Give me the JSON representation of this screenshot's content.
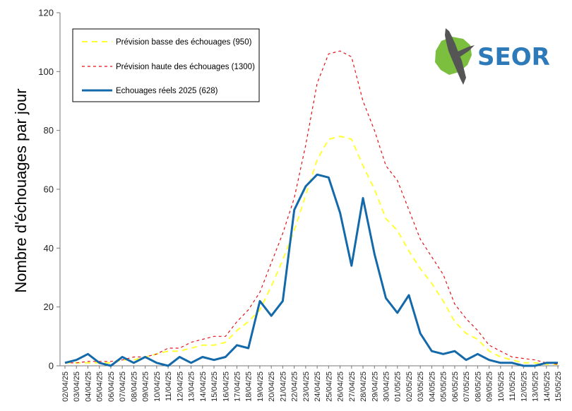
{
  "chart_data": {
    "type": "line",
    "title": "",
    "xlabel": "",
    "ylabel": "Nombre d'échouages par jour",
    "ylim": [
      0,
      120
    ],
    "yticks": [
      0,
      20,
      40,
      60,
      80,
      100,
      120
    ],
    "grid": false,
    "legend_position": "top-left",
    "categories": [
      "02/04/25",
      "03/04/25",
      "04/04/25",
      "05/04/25",
      "06/04/25",
      "07/04/25",
      "08/04/25",
      "09/04/25",
      "10/04/25",
      "11/04/25",
      "12/04/25",
      "13/04/25",
      "14/04/25",
      "15/04/25",
      "16/04/25",
      "17/04/25",
      "18/04/25",
      "19/04/25",
      "20/04/25",
      "21/04/25",
      "22/04/25",
      "23/04/25",
      "24/04/25",
      "25/04/25",
      "26/04/25",
      "27/04/25",
      "28/04/25",
      "29/04/25",
      "30/04/25",
      "01/05/25",
      "02/05/25",
      "03/05/25",
      "04/05/25",
      "05/05/25",
      "06/05/25",
      "07/05/25",
      "08/05/25",
      "09/05/25",
      "10/05/25",
      "11/05/25",
      "12/05/25",
      "13/05/25",
      "14/05/25",
      "15/05/25"
    ],
    "series": [
      {
        "name": "Prévision basse des échouages (950)",
        "color": "#ffff33",
        "style": "dashed",
        "values": [
          1,
          1,
          1,
          1,
          1,
          2,
          2,
          3,
          4,
          5,
          5,
          6,
          7,
          7,
          8,
          12,
          15,
          19,
          27,
          36,
          46,
          58,
          70,
          77,
          78,
          77,
          68,
          60,
          50,
          46,
          39,
          33,
          28,
          22,
          15,
          11,
          9,
          5,
          3,
          2,
          1,
          1,
          0.5,
          0.5
        ]
      },
      {
        "name": "Prévision haute des échouages (1300)",
        "color": "#e4141b",
        "style": "dotted",
        "values": [
          1,
          1,
          1.5,
          1.5,
          1.5,
          2,
          3,
          3,
          4,
          6,
          6,
          8,
          9,
          10,
          10,
          15,
          19,
          25,
          35,
          45,
          57,
          75,
          96,
          106,
          107,
          105,
          90,
          80,
          68,
          63,
          53,
          43,
          37,
          31,
          21,
          16,
          12,
          7,
          5,
          3,
          2.5,
          2,
          1,
          0.5
        ]
      },
      {
        "name": "Echouages réels 2025 (628)",
        "color": "#1369a9",
        "style": "solid",
        "values": [
          1,
          2,
          4,
          1,
          0,
          3,
          1,
          3,
          1,
          0,
          3,
          1,
          3,
          2,
          3,
          7,
          6,
          22,
          17,
          22,
          53,
          61,
          65,
          64,
          52,
          34,
          57,
          38,
          23,
          18,
          24,
          11,
          5,
          4,
          5,
          2,
          4,
          2,
          1,
          1,
          0,
          0,
          1,
          1
        ]
      }
    ]
  },
  "logo": {
    "text": "SEOR",
    "text_color": "#2e7ab9",
    "island_color": "#7cbf3f",
    "bird_color": "#555555"
  }
}
